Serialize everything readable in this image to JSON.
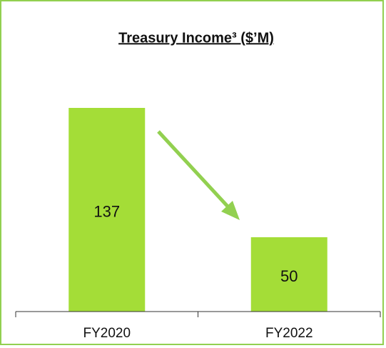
{
  "chart_data": {
    "type": "bar",
    "title": "Treasury Income³ ($’M)",
    "categories": [
      "FY2020",
      "FY2022"
    ],
    "values": [
      137,
      50
    ],
    "color": "#a4dd37"
  }
}
